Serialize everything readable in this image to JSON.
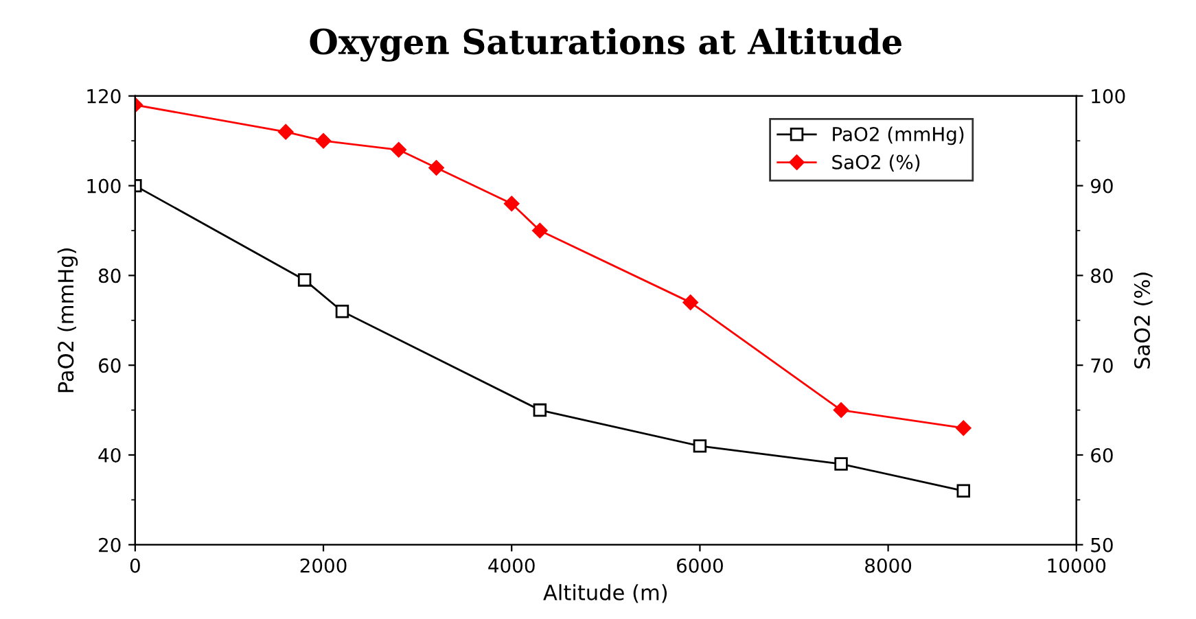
{
  "chart_data": {
    "type": "line",
    "title": "Oxygen Saturations at Altitude",
    "xlabel": "Altitude (m)",
    "ylabel": "PaO2 (mmHg)",
    "y2label": "SaO2 (%)",
    "series": [
      {
        "name": "PaO2 (mmHg)",
        "color": "#000000",
        "marker": "square",
        "x": [
          0,
          1800,
          2200,
          4300,
          6000,
          7500,
          8800
        ],
        "values": [
          100,
          79,
          72,
          50,
          42,
          38,
          32
        ]
      },
      {
        "name": "SaO2 (%)",
        "color": "#ff0000",
        "marker": "diamond",
        "axis": "y2",
        "x": [
          0,
          1600,
          2000,
          2800,
          3200,
          4000,
          4300,
          5900,
          7500,
          8800
        ],
        "values": [
          99,
          96,
          95,
          94,
          92,
          88,
          85,
          77,
          65,
          63
        ]
      }
    ],
    "xlim": [
      0,
      10000
    ],
    "xticks": [
      0,
      2000,
      4000,
      6000,
      8000,
      10000
    ],
    "ylim": [
      20,
      120
    ],
    "yticks": [
      20,
      40,
      60,
      80,
      100,
      120
    ],
    "y2lim": [
      50,
      100
    ],
    "y2ticks": [
      50,
      60,
      70,
      80,
      90,
      100
    ],
    "grid": false,
    "legend": "top right"
  }
}
